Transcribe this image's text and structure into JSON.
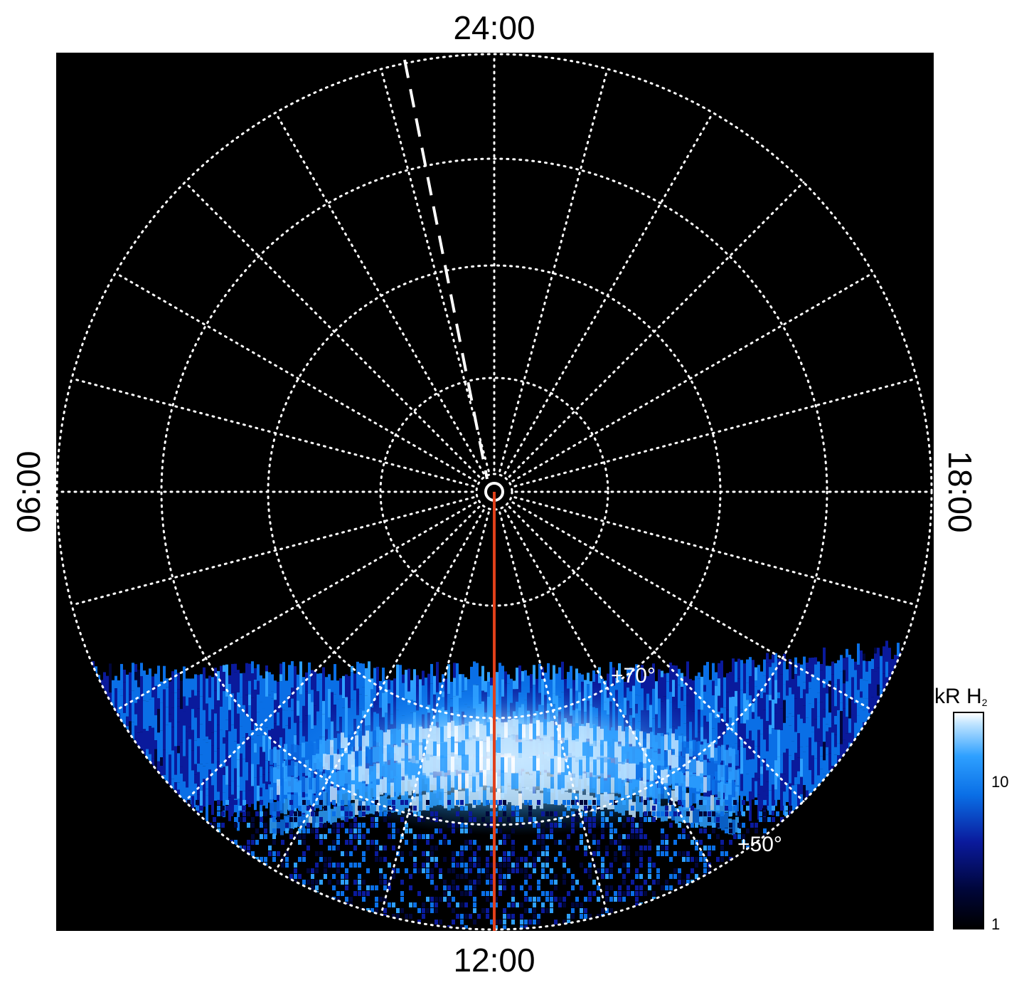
{
  "chart_data": {
    "type": "heatmap",
    "projection": "polar (local time vs. latitude)",
    "local_time_labels": {
      "top": "24:00",
      "bottom": "12:00",
      "left": "06:00",
      "right": "18:00"
    },
    "latitude_annotations": [
      "+70°",
      "+50°"
    ],
    "colorbar": {
      "title": "kR H",
      "title_subscript": "2",
      "scale": "log",
      "range": [
        1,
        25
      ],
      "tick_labels": [
        "10",
        "1"
      ],
      "colors": [
        "#000000",
        "#00063a",
        "#0a1a9c",
        "#0a6fe6",
        "#2ea0ff",
        "#bfe4ff",
        "#ffffff"
      ]
    },
    "grid": true,
    "noon_meridian_color": "#e0401a",
    "dashed_reference_line_color": "#ffffff"
  }
}
